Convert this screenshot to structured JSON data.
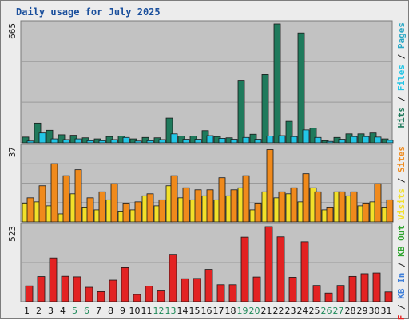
{
  "title": "Daily usage for July 2025",
  "colors": {
    "hits": "#1f7a5c",
    "files": "#23c6e6",
    "pages": "#2aa8c6",
    "visits": "#f2e02a",
    "sites": "#f08a1c",
    "kb": "#e32222",
    "kbin": "#3f7fd9",
    "kbout": "#2fa42f",
    "panel": "#c2c2c2",
    "weekend": "#1f8a5a",
    "weekday": "#111111"
  },
  "chart_data": [
    {
      "type": "bar",
      "panel": "top",
      "ymax_label": "665",
      "ymax": 665,
      "right_labels": [
        {
          "text": "Hits",
          "color": "#1f7a5c"
        },
        {
          "text": "Files",
          "color": "#23c6e6"
        },
        {
          "text": "Pages",
          "color": "#2aa8c6"
        }
      ],
      "categories": [
        "1",
        "2",
        "3",
        "4",
        "5",
        "6",
        "7",
        "8",
        "9",
        "10",
        "11",
        "12",
        "13",
        "14",
        "15",
        "16",
        "17",
        "18",
        "19",
        "20",
        "21",
        "22",
        "23",
        "24",
        "25",
        "26",
        "27",
        "28",
        "29",
        "30",
        "31"
      ],
      "series": [
        {
          "name": "Hits",
          "values": [
            32,
            110,
            70,
            45,
            42,
            28,
            22,
            35,
            38,
            22,
            30,
            28,
            138,
            38,
            38,
            68,
            35,
            28,
            350,
            48,
            382,
            665,
            120,
            615,
            82,
            12,
            30,
            50,
            50,
            55,
            22
          ]
        },
        {
          "name": "Files",
          "values": [
            10,
            55,
            22,
            18,
            22,
            12,
            12,
            18,
            30,
            10,
            12,
            18,
            50,
            20,
            20,
            40,
            25,
            20,
            30,
            20,
            38,
            40,
            35,
            72,
            30,
            8,
            20,
            35,
            35,
            32,
            14
          ]
        }
      ]
    },
    {
      "type": "bar",
      "panel": "middle",
      "ymax_label": "37",
      "ymax": 37,
      "right_labels": [
        {
          "text": "Visits",
          "color": "#f2e02a"
        },
        {
          "text": "Sites",
          "color": "#f08a1c"
        }
      ],
      "categories": [
        "1",
        "2",
        "3",
        "4",
        "5",
        "6",
        "7",
        "8",
        "9",
        "10",
        "11",
        "12",
        "13",
        "14",
        "15",
        "16",
        "17",
        "18",
        "19",
        "20",
        "21",
        "22",
        "23",
        "24",
        "25",
        "26",
        "27",
        "28",
        "29",
        "30",
        "31"
      ],
      "series": [
        {
          "name": "Visits",
          "values": [
            9,
            10,
            8,
            4,
            14,
            7,
            6,
            11,
            5,
            6,
            13,
            8,
            18,
            12,
            11,
            13,
            11,
            13,
            17,
            6,
            15,
            12,
            14,
            10,
            17,
            6,
            15,
            13,
            8,
            10,
            7
          ]
        },
        {
          "name": "Sites",
          "values": [
            12,
            18,
            29,
            23,
            26,
            12,
            15,
            19,
            9,
            10,
            14,
            11,
            23,
            17,
            16,
            16,
            22,
            16,
            23,
            9,
            36,
            15,
            17,
            24,
            15,
            7,
            15,
            15,
            9,
            19,
            11
          ]
        }
      ]
    },
    {
      "type": "bar",
      "panel": "bottom",
      "ymax_label": "523",
      "ymax": 523,
      "right_labels": [
        {
          "text": "KB F",
          "color": "#e32222"
        },
        {
          "text": "KB In",
          "color": "#3f7fd9"
        },
        {
          "text": "KB Out",
          "color": "#2fa42f"
        }
      ],
      "categories": [
        "1",
        "2",
        "3",
        "4",
        "5",
        "6",
        "7",
        "8",
        "9",
        "10",
        "11",
        "12",
        "13",
        "14",
        "15",
        "16",
        "17",
        "18",
        "19",
        "20",
        "21",
        "22",
        "23",
        "24",
        "25",
        "26",
        "27",
        "28",
        "29",
        "30",
        "31"
      ],
      "weekend_days": [
        "5",
        "6",
        "12",
        "13",
        "19",
        "20",
        "26",
        "27"
      ],
      "series": [
        {
          "name": "KB F",
          "values": [
            110,
            175,
            305,
            177,
            173,
            100,
            70,
            150,
            237,
            50,
            108,
            75,
            330,
            160,
            162,
            225,
            118,
            118,
            450,
            172,
            523,
            452,
            170,
            418,
            113,
            60,
            113,
            176,
            195,
            200,
            68
          ]
        }
      ]
    }
  ]
}
